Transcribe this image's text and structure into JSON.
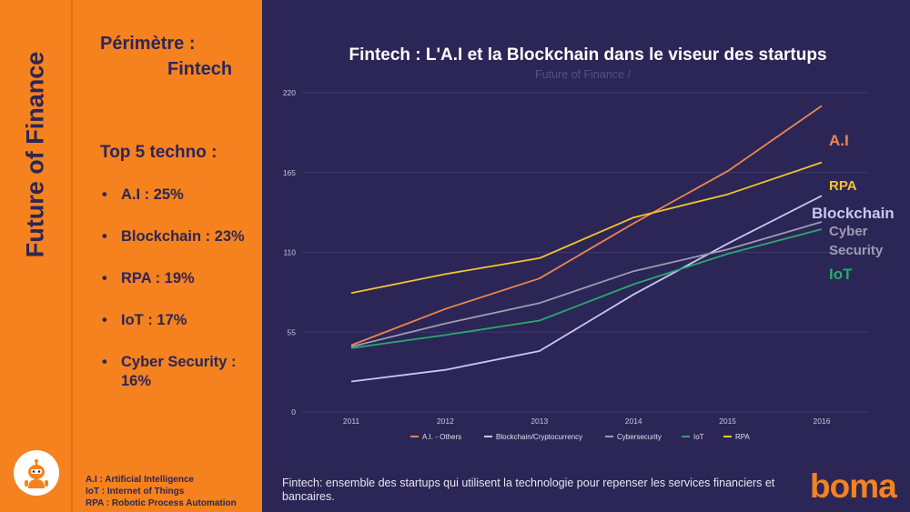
{
  "sidebar": {
    "vertical_title": "Future of Finance",
    "logo_icon": "robot-icon"
  },
  "left_panel": {
    "perimetre_label": "Périmètre :",
    "perimetre_value": "Fintech",
    "top_title": "Top 5 techno :",
    "items": [
      {
        "label": "A.I : 25%"
      },
      {
        "label": "Blockchain : 23%"
      },
      {
        "label": "RPA : 19%"
      },
      {
        "label": "IoT : 17%"
      },
      {
        "label": "Cyber Security : 16%"
      }
    ],
    "abbreviations": [
      "A.I : Artificial Intelligence",
      "IoT : Internet of Things",
      "RPA : Robotic Process Automation"
    ]
  },
  "chart_data": {
    "type": "line",
    "title": "Fintech : L'A.I et la Blockchain dans le viseur des startups",
    "subtitle": "Future of Finance /",
    "x": [
      "2011",
      "2012",
      "2013",
      "2014",
      "2015",
      "2016"
    ],
    "ylim": [
      0,
      220
    ],
    "yticks": [
      "0",
      "55",
      "110",
      "165",
      "220"
    ],
    "grid": true,
    "legend_position": "bottom",
    "series": [
      {
        "name": "A.I. - Others",
        "color": "#f08550",
        "values": [
          46,
          71,
          92,
          130,
          166,
          211
        ],
        "end_label": "A.I"
      },
      {
        "name": "Blockchain/Cryptocurrency",
        "color": "#c5c8f2",
        "values": [
          21,
          29,
          42,
          81,
          116,
          149
        ],
        "end_label": "Blockchain"
      },
      {
        "name": "Cybersecurity",
        "color": "#a09cb2",
        "values": [
          45,
          61,
          75,
          97,
          112,
          131
        ],
        "end_label": "Cyber Security"
      },
      {
        "name": "IoT",
        "color": "#2aa86e",
        "values": [
          44,
          53,
          63,
          88,
          109,
          126
        ],
        "end_label": "IoT"
      },
      {
        "name": "RPA",
        "color": "#f6c431",
        "values": [
          82,
          95,
          106,
          134,
          150,
          172
        ],
        "end_label": "RPA"
      }
    ]
  },
  "footer": {
    "note": "Fintech: ensemble des startups qui utilisent la technologie pour repenser les services financiers et bancaires.",
    "brand": "boma"
  }
}
